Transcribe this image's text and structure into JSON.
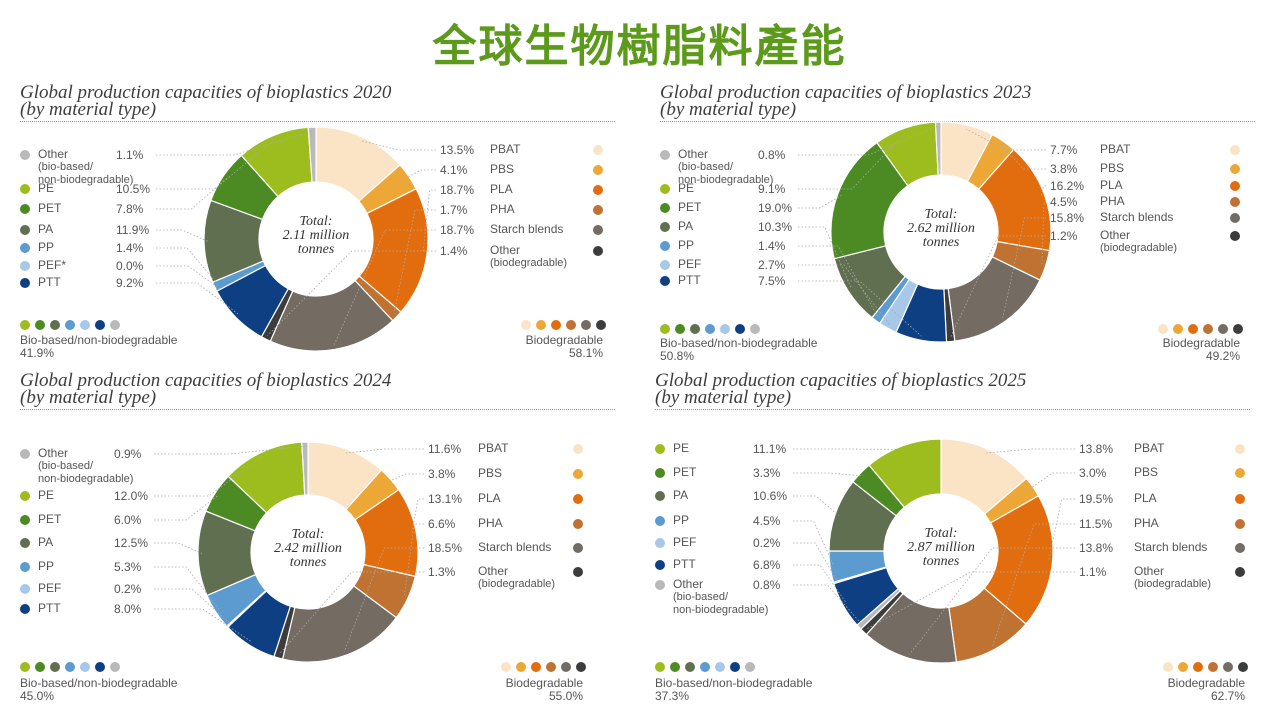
{
  "page_title": "全球生物樹脂料產能",
  "colors": {
    "PE": "#9dbd1e",
    "PET": "#4c8a24",
    "PA": "#5f6f50",
    "PP": "#5b9bd0",
    "PEF": "#a7c8e8",
    "PTT": "#0f3f83",
    "Other (bio-based/non-biodegradable)": "#b9b9b9",
    "PBAT": "#fbe3c6",
    "PBS": "#eda737",
    "PLA": "#e26d0e",
    "PHA": "#bf7232",
    "Starch blends": "#746b62",
    "Other (biodegradable)": "#3c3c3c"
  },
  "chart_data": [
    {
      "type": "pie",
      "title_line1": "Global production capacities of bioplastics 2020",
      "title_line2": "(by material type)",
      "center": [
        "Total:",
        "2.11 million",
        "tonnes"
      ],
      "slices_clockwise": [
        {
          "name": "PBAT",
          "value": 13.5
        },
        {
          "name": "PBS",
          "value": 4.1
        },
        {
          "name": "PLA",
          "value": 18.7
        },
        {
          "name": "PHA",
          "value": 1.7
        },
        {
          "name": "Starch blends",
          "value": 18.7
        },
        {
          "name": "Other (biodegradable)",
          "value": 1.4
        },
        {
          "name": "PTT",
          "value": 9.2
        },
        {
          "name": "PEF",
          "value": 0.0
        },
        {
          "name": "PP",
          "value": 1.4
        },
        {
          "name": "PA",
          "value": 11.9
        },
        {
          "name": "PET",
          "value": 7.8
        },
        {
          "name": "PE",
          "value": 10.5
        },
        {
          "name": "Other (bio-based/non-biodegradable)",
          "value": 1.1
        }
      ],
      "left_legend": [
        {
          "label": "Other",
          "sub": [
            "(bio-based/",
            "non-biodegradable)"
          ],
          "value": "1.1%",
          "key": "Other (bio-based/non-biodegradable)"
        },
        {
          "label": "PE",
          "value": "10.5%",
          "key": "PE"
        },
        {
          "label": "PET",
          "value": "7.8%",
          "key": "PET"
        },
        {
          "label": "PA",
          "value": "11.9%",
          "key": "PA"
        },
        {
          "label": "PP",
          "value": "1.4%",
          "key": "PP"
        },
        {
          "label": "PEF*",
          "value": "0.0%",
          "key": "PEF"
        },
        {
          "label": "PTT",
          "value": "9.2%",
          "key": "PTT"
        }
      ],
      "right_legend": [
        {
          "label": "PBAT",
          "value": "13.5%",
          "key": "PBAT"
        },
        {
          "label": "PBS",
          "value": "4.1%",
          "key": "PBS"
        },
        {
          "label": "PLA",
          "value": "18.7%",
          "key": "PLA"
        },
        {
          "label": "PHA",
          "value": "1.7%",
          "key": "PHA"
        },
        {
          "label": "Starch blends",
          "value": "18.7%",
          "key": "Starch blends"
        },
        {
          "label": "Other",
          "sub": [
            "(biodegradable)"
          ],
          "value": "1.4%",
          "key": "Other (biodegradable)"
        }
      ],
      "group_left": {
        "label": "Bio-based/non-biodegradable",
        "value": "41.9%"
      },
      "group_right": {
        "label": "Biodegradable",
        "value": "58.1%"
      }
    },
    {
      "type": "pie",
      "title_line1": "Global production capacities of bioplastics 2023",
      "title_line2": "(by material type)",
      "center": [
        "Total:",
        "2.62 million",
        "tonnes"
      ],
      "slices_clockwise": [
        {
          "name": "PBAT",
          "value": 7.7
        },
        {
          "name": "PBS",
          "value": 3.8
        },
        {
          "name": "PLA",
          "value": 16.2
        },
        {
          "name": "PHA",
          "value": 4.5
        },
        {
          "name": "Starch blends",
          "value": 15.8
        },
        {
          "name": "Other (biodegradable)",
          "value": 1.2
        },
        {
          "name": "PTT",
          "value": 7.5
        },
        {
          "name": "PEF",
          "value": 2.7
        },
        {
          "name": "PP",
          "value": 1.4
        },
        {
          "name": "PA",
          "value": 10.3
        },
        {
          "name": "PET",
          "value": 19.0
        },
        {
          "name": "PE",
          "value": 9.1
        },
        {
          "name": "Other (bio-based/non-biodegradable)",
          "value": 0.8
        }
      ],
      "left_legend": [
        {
          "label": "Other",
          "sub": [
            "(bio-based/",
            "non-biodegradable)"
          ],
          "value": "0.8%",
          "key": "Other (bio-based/non-biodegradable)"
        },
        {
          "label": "PE",
          "value": "9.1%",
          "key": "PE"
        },
        {
          "label": "PET",
          "value": "19.0%",
          "key": "PET"
        },
        {
          "label": "PA",
          "value": "10.3%",
          "key": "PA"
        },
        {
          "label": "PP",
          "value": "1.4%",
          "key": "PP"
        },
        {
          "label": "PEF",
          "value": "2.7%",
          "key": "PEF"
        },
        {
          "label": "PTT",
          "value": "7.5%",
          "key": "PTT"
        }
      ],
      "right_legend": [
        {
          "label": "PBAT",
          "value": "7.7%",
          "key": "PBAT"
        },
        {
          "label": "PBS",
          "value": "3.8%",
          "key": "PBS"
        },
        {
          "label": "PLA",
          "value": "16.2%",
          "key": "PLA"
        },
        {
          "label": "PHA",
          "value": "4.5%",
          "key": "PHA"
        },
        {
          "label": "Starch blends",
          "value": "15.8%",
          "key": "Starch blends"
        },
        {
          "label": "Other",
          "sub": [
            "(biodegradable)"
          ],
          "value": "1.2%",
          "key": "Other (biodegradable)"
        }
      ],
      "group_left": {
        "label": "Bio-based/non-biodegradable",
        "value": "50.8%"
      },
      "group_right": {
        "label": "Biodegradable",
        "value": "49.2%"
      }
    },
    {
      "type": "pie",
      "title_line1": "Global production capacities of bioplastics 2024",
      "title_line2": "(by material type)",
      "center": [
        "Total:",
        "2.42 million",
        "tonnes"
      ],
      "slices_clockwise": [
        {
          "name": "PBAT",
          "value": 11.6
        },
        {
          "name": "PBS",
          "value": 3.8
        },
        {
          "name": "PLA",
          "value": 13.1
        },
        {
          "name": "PHA",
          "value": 6.6
        },
        {
          "name": "Starch blends",
          "value": 18.5
        },
        {
          "name": "Other (biodegradable)",
          "value": 1.3
        },
        {
          "name": "PTT",
          "value": 8.0
        },
        {
          "name": "PEF",
          "value": 0.2
        },
        {
          "name": "PP",
          "value": 5.3
        },
        {
          "name": "PA",
          "value": 12.5
        },
        {
          "name": "PET",
          "value": 6.0
        },
        {
          "name": "PE",
          "value": 12.0
        },
        {
          "name": "Other (bio-based/non-biodegradable)",
          "value": 0.9
        }
      ],
      "left_legend": [
        {
          "label": "Other",
          "sub": [
            "(bio-based/",
            "non-biodegradable)"
          ],
          "value": "0.9%",
          "key": "Other (bio-based/non-biodegradable)"
        },
        {
          "label": "PE",
          "value": "12.0%",
          "key": "PE"
        },
        {
          "label": "PET",
          "value": "6.0%",
          "key": "PET"
        },
        {
          "label": "PA",
          "value": "12.5%",
          "key": "PA"
        },
        {
          "label": "PP",
          "value": "5.3%",
          "key": "PP"
        },
        {
          "label": "PEF",
          "value": "0.2%",
          "key": "PEF"
        },
        {
          "label": "PTT",
          "value": "8.0%",
          "key": "PTT"
        }
      ],
      "right_legend": [
        {
          "label": "PBAT",
          "value": "11.6%",
          "key": "PBAT"
        },
        {
          "label": "PBS",
          "value": "3.8%",
          "key": "PBS"
        },
        {
          "label": "PLA",
          "value": "13.1%",
          "key": "PLA"
        },
        {
          "label": "PHA",
          "value": "6.6%",
          "key": "PHA"
        },
        {
          "label": "Starch blends",
          "value": "18.5%",
          "key": "Starch blends"
        },
        {
          "label": "Other",
          "sub": [
            "(biodegradable)"
          ],
          "value": "1.3%",
          "key": "Other (biodegradable)"
        }
      ],
      "group_left": {
        "label": "Bio-based/non-biodegradable",
        "value": "45.0%"
      },
      "group_right": {
        "label": "Biodegradable",
        "value": "55.0%"
      }
    },
    {
      "type": "pie",
      "title_line1": "Global production capacities of bioplastics 2025",
      "title_line2": "(by material type)",
      "center": [
        "Total:",
        "2.87 million",
        "tonnes"
      ],
      "slices_clockwise": [
        {
          "name": "PBAT",
          "value": 13.8
        },
        {
          "name": "PBS",
          "value": 3.0
        },
        {
          "name": "PLA",
          "value": 19.5
        },
        {
          "name": "PHA",
          "value": 11.5
        },
        {
          "name": "Starch blends",
          "value": 13.8
        },
        {
          "name": "Other (biodegradable)",
          "value": 1.1
        },
        {
          "name": "Other (bio-based/non-biodegradable)",
          "value": 0.8
        },
        {
          "name": "PTT",
          "value": 6.8
        },
        {
          "name": "PEF",
          "value": 0.2
        },
        {
          "name": "PP",
          "value": 4.5
        },
        {
          "name": "PA",
          "value": 10.6
        },
        {
          "name": "PET",
          "value": 3.3
        },
        {
          "name": "PE",
          "value": 11.1
        }
      ],
      "left_legend": [
        {
          "label": "PE",
          "value": "11.1%",
          "key": "PE"
        },
        {
          "label": "PET",
          "value": "3.3%",
          "key": "PET"
        },
        {
          "label": "PA",
          "value": "10.6%",
          "key": "PA"
        },
        {
          "label": "PP",
          "value": "4.5%",
          "key": "PP"
        },
        {
          "label": "PEF",
          "value": "0.2%",
          "key": "PEF"
        },
        {
          "label": "PTT",
          "value": "6.8%",
          "key": "PTT"
        },
        {
          "label": "Other",
          "sub": [
            "(bio-based/",
            "non-biodegradable)"
          ],
          "value": "0.8%",
          "key": "Other (bio-based/non-biodegradable)"
        }
      ],
      "right_legend": [
        {
          "label": "PBAT",
          "value": "13.8%",
          "key": "PBAT"
        },
        {
          "label": "PBS",
          "value": "3.0%",
          "key": "PBS"
        },
        {
          "label": "PLA",
          "value": "19.5%",
          "key": "PLA"
        },
        {
          "label": "PHA",
          "value": "11.5%",
          "key": "PHA"
        },
        {
          "label": "Starch blends",
          "value": "13.8%",
          "key": "Starch blends"
        },
        {
          "label": "Other",
          "sub": [
            "(biodegradable)"
          ],
          "value": "1.1%",
          "key": "Other (biodegradable)"
        }
      ],
      "group_left": {
        "label": "Bio-based/non-biodegradable",
        "value": "37.3%"
      },
      "group_right": {
        "label": "Biodegradable",
        "value": "62.7%"
      }
    }
  ]
}
